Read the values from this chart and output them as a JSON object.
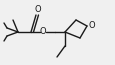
{
  "bg_color": "#f0f0f0",
  "line_color": "#1a1a1a",
  "lw": 1.0,
  "figsize": [
    1.16,
    0.65
  ],
  "dpi": 100,
  "atoms": {
    "O_carbonyl_label": "O",
    "O_ester_label": "O",
    "O_oxetane_label": "O"
  }
}
